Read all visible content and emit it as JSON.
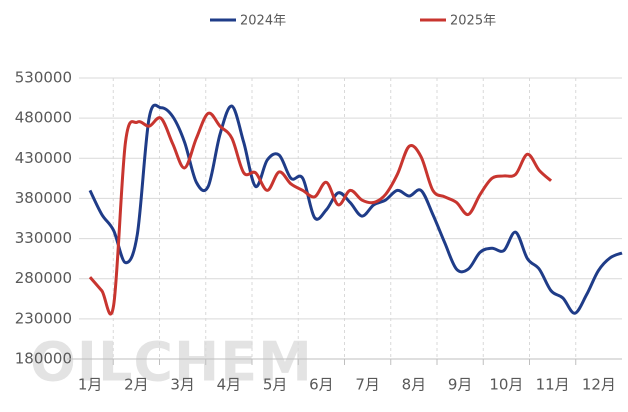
{
  "chart_data": {
    "type": "line",
    "watermark": "OILCHEM",
    "x_labels": [
      "1月",
      "2月",
      "3月",
      "4月",
      "5月",
      "6月",
      "7月",
      "8月",
      "9月",
      "10月",
      "11月",
      "12月"
    ],
    "ylim": [
      180000,
      530000
    ],
    "yticks": [
      180000,
      230000,
      280000,
      330000,
      380000,
      430000,
      480000,
      530000
    ],
    "grid": true,
    "legend": "top",
    "series": [
      {
        "name": "2024年",
        "color": "#1f3c88",
        "values": [
          390000,
          360000,
          340000,
          300000,
          335000,
          480000,
          493000,
          482000,
          450000,
          400000,
          395000,
          460000,
          495000,
          450000,
          395000,
          428000,
          434000,
          405000,
          405000,
          356000,
          366000,
          387000,
          375000,
          358000,
          372000,
          378000,
          390000,
          383000,
          390000,
          360000,
          325000,
          292000,
          292000,
          313000,
          318000,
          315000,
          338000,
          305000,
          292000,
          265000,
          256000,
          237000,
          260000,
          290000,
          306000,
          312000
        ]
      },
      {
        "name": "2025年",
        "color": "#c8352f",
        "values": [
          282000,
          265000,
          247000,
          450000,
          475000,
          470000,
          480000,
          448000,
          418000,
          455000,
          486000,
          470000,
          455000,
          412000,
          412000,
          390000,
          413000,
          398000,
          390000,
          382000,
          400000,
          372000,
          390000,
          378000,
          375000,
          385000,
          410000,
          445000,
          432000,
          390000,
          382000,
          375000,
          360000,
          385000,
          405000,
          408000,
          410000,
          435000,
          415000,
          402000,
          null,
          null,
          null,
          null,
          null,
          null
        ]
      }
    ]
  }
}
